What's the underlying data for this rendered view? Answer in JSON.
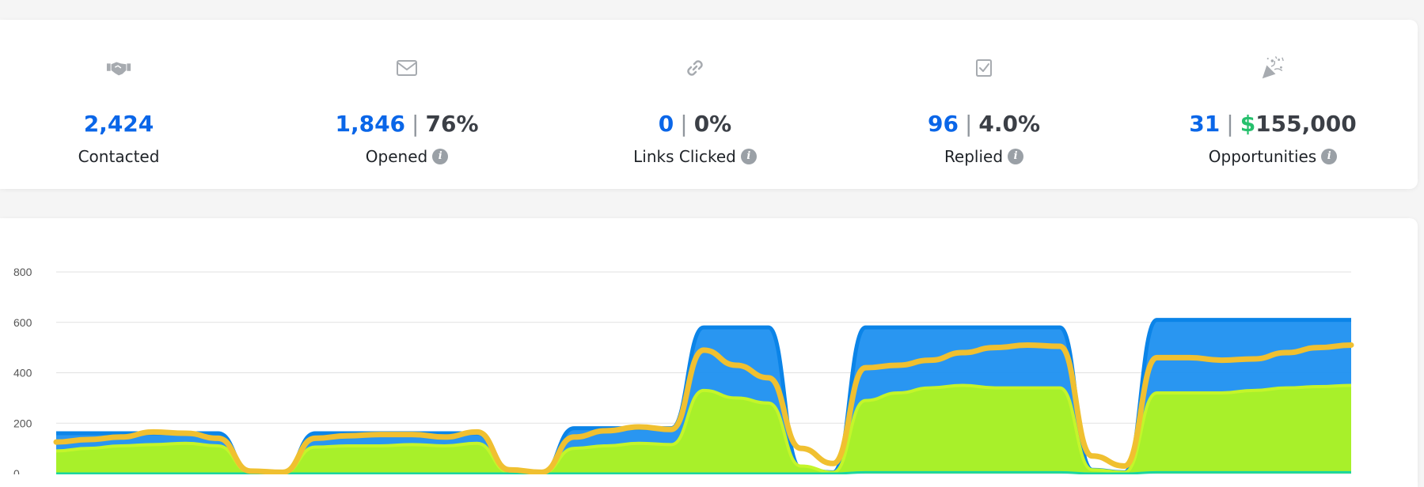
{
  "stats": [
    {
      "key": "contacted",
      "icon": "handshake-icon",
      "value": "2,424",
      "label": "Contacted",
      "has_info": false
    },
    {
      "key": "opened",
      "icon": "envelope-icon",
      "value": "1,846",
      "separator": "|",
      "pct": "76%",
      "label": "Opened",
      "has_info": true
    },
    {
      "key": "links-clicked",
      "icon": "link-icon",
      "value": "0",
      "separator": "|",
      "pct": "0%",
      "label": "Links Clicked",
      "has_info": true
    },
    {
      "key": "replied",
      "icon": "reply-check-icon",
      "value": "96",
      "separator": "|",
      "pct": "4.0%",
      "label": "Replied",
      "has_info": true
    },
    {
      "key": "opportunities",
      "icon": "party-popper-icon",
      "value": "31",
      "separator": "|",
      "currency": "$",
      "amount": "155,000",
      "label": "Opportunities",
      "has_info": true
    }
  ],
  "info_glyph": "i",
  "colors": {
    "primary": "#0a66e8",
    "money": "#26c06d",
    "series_blue": "#1e90f0",
    "series_green": "#a8f02a",
    "series_yellow": "#f0c030",
    "series_teal": "#1ad6a0"
  },
  "chart_data": {
    "type": "area",
    "yticks": [
      "0",
      "200",
      "400",
      "600",
      "800"
    ],
    "ylim": [
      0,
      800
    ],
    "grid": true,
    "x": [
      0,
      1,
      2,
      3,
      4,
      5,
      6,
      7,
      8,
      9,
      10,
      11,
      12,
      13,
      14,
      15,
      16,
      17,
      18,
      19,
      20,
      21,
      22,
      23,
      24,
      25,
      26,
      27,
      28,
      29,
      30,
      31,
      32,
      33,
      34,
      35,
      36,
      37,
      38,
      39,
      40
    ],
    "series": [
      {
        "values": [
          160,
          160,
          160,
          160,
          160,
          160,
          5,
          0,
          160,
          160,
          160,
          160,
          160,
          160,
          5,
          0,
          180,
          180,
          180,
          180,
          580,
          580,
          580,
          20,
          5,
          580,
          580,
          580,
          580,
          580,
          580,
          580,
          15,
          5,
          610,
          610,
          610,
          610,
          610,
          610,
          610
        ]
      },
      {
        "values": [
          125,
          135,
          145,
          165,
          160,
          140,
          10,
          5,
          140,
          150,
          155,
          155,
          145,
          165,
          15,
          5,
          145,
          170,
          185,
          175,
          490,
          430,
          380,
          100,
          40,
          420,
          430,
          450,
          480,
          500,
          510,
          505,
          70,
          30,
          460,
          460,
          450,
          455,
          480,
          500,
          510
        ]
      },
      {
        "values": [
          90,
          100,
          110,
          115,
          120,
          110,
          5,
          0,
          105,
          110,
          110,
          115,
          110,
          120,
          5,
          0,
          100,
          110,
          120,
          115,
          330,
          300,
          280,
          30,
          5,
          290,
          320,
          340,
          350,
          340,
          340,
          340,
          15,
          5,
          320,
          320,
          320,
          330,
          340,
          345,
          350
        ]
      },
      {
        "values": [
          0,
          0,
          0,
          0,
          0,
          0,
          0,
          0,
          0,
          0,
          0,
          0,
          0,
          0,
          0,
          0,
          0,
          0,
          0,
          0,
          0,
          0,
          0,
          0,
          0,
          5,
          5,
          5,
          5,
          5,
          5,
          5,
          0,
          0,
          5,
          5,
          5,
          5,
          5,
          5,
          5
        ]
      }
    ]
  }
}
